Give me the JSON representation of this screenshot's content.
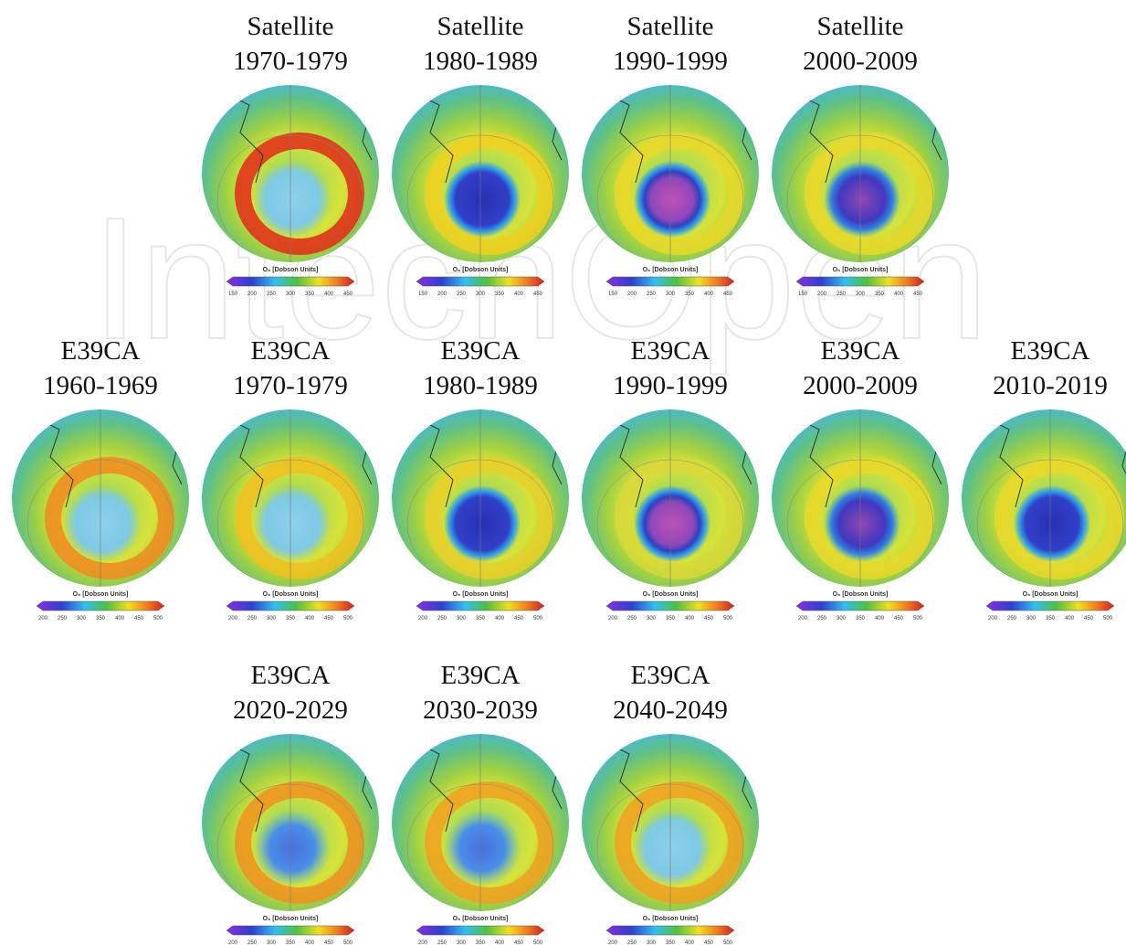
{
  "watermark": "IntechOpen",
  "rows": [
    {
      "panels": [
        {
          "source": "Satellite",
          "period": "1970-1979",
          "colorbar": {
            "label": "O₃ [Dobson Units]",
            "ticks": [
              150,
              200,
              250,
              300,
              350,
              400,
              450
            ]
          }
        },
        {
          "source": "Satellite",
          "period": "1980-1989",
          "colorbar": {
            "label": "O₃ [Dobson Units]",
            "ticks": [
              150,
              200,
              250,
              300,
              350,
              400,
              450
            ]
          }
        },
        {
          "source": "Satellite",
          "period": "1990-1999",
          "colorbar": {
            "label": "O₃ [Dobson Units]",
            "ticks": [
              150,
              200,
              250,
              300,
              350,
              400,
              450
            ]
          }
        },
        {
          "source": "Satellite",
          "period": "2000-2009",
          "colorbar": {
            "label": "O₃ [Dobson Units]",
            "ticks": [
              150,
              200,
              250,
              300,
              350,
              400,
              450
            ]
          }
        }
      ]
    },
    {
      "panels": [
        {
          "source": "E39CA",
          "period": "1960-1969",
          "colorbar": {
            "label": "O₃ [Dobson Units]",
            "ticks": [
              200,
              250,
              300,
              350,
              400,
              450,
              500
            ]
          }
        },
        {
          "source": "E39CA",
          "period": "1970-1979",
          "colorbar": {
            "label": "O₃ [Dobson Units]",
            "ticks": [
              200,
              250,
              300,
              350,
              400,
              450,
              500
            ]
          }
        },
        {
          "source": "E39CA",
          "period": "1980-1989",
          "colorbar": {
            "label": "O₃ [Dobson Units]",
            "ticks": [
              200,
              250,
              300,
              350,
              400,
              450,
              500
            ]
          }
        },
        {
          "source": "E39CA",
          "period": "1990-1999",
          "colorbar": {
            "label": "O₃ [Dobson Units]",
            "ticks": [
              200,
              250,
              300,
              350,
              400,
              450,
              500
            ]
          }
        },
        {
          "source": "E39CA",
          "period": "2000-2009",
          "colorbar": {
            "label": "O₃ [Dobson Units]",
            "ticks": [
              200,
              250,
              300,
              350,
              400,
              450,
              500
            ]
          }
        },
        {
          "source": "E39CA",
          "period": "2010-2019",
          "colorbar": {
            "label": "O₃ [Dobson Units]",
            "ticks": [
              200,
              250,
              300,
              350,
              400,
              450,
              500
            ]
          }
        }
      ]
    },
    {
      "panels": [
        {
          "source": "E39CA",
          "period": "2020-2029",
          "colorbar": {
            "label": "O₃ [Dobson Units]",
            "ticks": [
              200,
              250,
              300,
              350,
              400,
              450,
              500
            ]
          }
        },
        {
          "source": "E39CA",
          "period": "2030-2039",
          "colorbar": {
            "label": "O₃ [Dobson Units]",
            "ticks": [
              200,
              250,
              300,
              350,
              400,
              450,
              500
            ]
          }
        },
        {
          "source": "E39CA",
          "period": "2040-2049",
          "colorbar": {
            "label": "O₃ [Dobson Units]",
            "ticks": [
              200,
              250,
              300,
              350,
              400,
              450,
              500
            ]
          }
        }
      ]
    }
  ]
}
